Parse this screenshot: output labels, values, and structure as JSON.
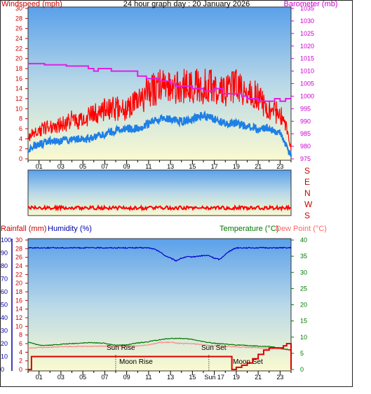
{
  "title": "24 hour graph day : 20 January 2026",
  "colors": {
    "wind": "#ff0000",
    "wind_avg": "#1e7fe6",
    "baro": "#e020e0",
    "temp": "#007700",
    "dew": "#ff8888",
    "humidity": "#0000cc",
    "rain": "#dd0000",
    "dirlabel": "#cc0000"
  },
  "chart_data": [
    {
      "type": "line",
      "name": "wind-baro-panel",
      "left_axis_label": "Windspeed (mph)",
      "right_axis_label": "Barometer (mb)",
      "left_ticks": [
        "0",
        "2",
        "4",
        "6",
        "8",
        "10",
        "12",
        "14",
        "16",
        "18",
        "20",
        "22",
        "24",
        "26",
        "28",
        "30"
      ],
      "right_ticks": [
        "975",
        "980",
        "985",
        "990",
        "995",
        "1000",
        "1005",
        "1010",
        "1015",
        "1020",
        "1025",
        "1030",
        "1035"
      ],
      "ylim_left": [
        0,
        30
      ],
      "ylim_right": [
        975,
        1035
      ],
      "x_ticks": [
        "01",
        "03",
        "05",
        "07",
        "09",
        "11",
        "13",
        "15",
        "17",
        "19",
        "21",
        "23"
      ],
      "xlim": [
        0,
        24
      ],
      "series": [
        {
          "key": "gust",
          "x": [
            0,
            1,
            2,
            3,
            4,
            5,
            6,
            7,
            8,
            9,
            10,
            11,
            12,
            13,
            14,
            15,
            16,
            17,
            18,
            19,
            20,
            21,
            22,
            23,
            23.5,
            24
          ],
          "values": [
            4,
            5,
            6,
            6,
            7,
            7,
            8,
            9,
            9,
            9,
            10,
            12,
            13,
            13,
            13,
            13,
            13,
            13,
            12,
            13,
            12,
            11,
            9,
            8,
            6,
            2
          ]
        },
        {
          "key": "average",
          "x": [
            0,
            1,
            2,
            3,
            4,
            5,
            6,
            7,
            8,
            9,
            10,
            11,
            12,
            13,
            14,
            15,
            16,
            17,
            18,
            19,
            20,
            21,
            22,
            23,
            23.5,
            24
          ],
          "values": [
            2,
            3,
            3.5,
            3.5,
            4,
            4,
            4,
            5,
            5.5,
            6,
            6,
            7,
            8,
            8,
            7.5,
            8,
            8.5,
            8,
            7,
            7,
            6.5,
            6,
            6,
            5,
            3,
            0.5
          ]
        },
        {
          "key": "pressure",
          "x": [
            0,
            1,
            1.5,
            3.5,
            5.5,
            6,
            6.4,
            7,
            7.6,
            9,
            10,
            10.8,
            11.5,
            12,
            12.5,
            13,
            13.5,
            14,
            15,
            16,
            16.5,
            17,
            17.8,
            18.5,
            19.5,
            20,
            21,
            22,
            22.5,
            23,
            23.5,
            24
          ],
          "values": [
            1013,
            1013,
            1012.5,
            1012,
            1011,
            1010,
            1011,
            1011,
            1010,
            1010,
            1008,
            1007,
            1007,
            1006,
            1006,
            1005,
            1004,
            1004,
            1003,
            1002,
            1002,
            1003,
            1001,
            1001,
            1000,
            999,
            998,
            998,
            999,
            998,
            999,
            999
          ]
        }
      ]
    },
    {
      "type": "line",
      "name": "wind-direction-panel",
      "right_labels": [
        "S",
        "E",
        "N",
        "W",
        "S"
      ],
      "xlim": [
        0,
        24
      ],
      "series": [
        {
          "key": "direction",
          "x": [
            0,
            2,
            4,
            6,
            8,
            10,
            12,
            14,
            16,
            18,
            20,
            22,
            24
          ],
          "values": [
            -1,
            -1,
            -1,
            -1,
            -1,
            -1,
            -1,
            -1,
            -1,
            -1,
            -1,
            -1,
            -1
          ]
        }
      ]
    },
    {
      "type": "line",
      "name": "temp-rain-humidity-panel",
      "rain_label": "Rainfall (mm)",
      "humidity_label": "Humidity (%)",
      "temp_label": "Temperature (°C)",
      "dew_label": "Dew Point (°C)",
      "humidity_ticks": [
        "0",
        "10",
        "20",
        "30",
        "40",
        "50",
        "60",
        "70",
        "80",
        "90",
        "100"
      ],
      "rain_ticks": [
        "0",
        "2",
        "4",
        "6",
        "8",
        "10",
        "12",
        "14",
        "16",
        "18",
        "20",
        "22",
        "24",
        "26",
        "28",
        "30"
      ],
      "temp_ticks": [
        "0",
        "5",
        "10",
        "15",
        "20",
        "25",
        "30",
        "35",
        "40"
      ],
      "ylim_humidity": [
        0,
        100
      ],
      "ylim_rain": [
        0,
        30
      ],
      "ylim_temp": [
        0,
        40
      ],
      "x_ticks": [
        "01",
        "03",
        "05",
        "07",
        "09",
        "11",
        "13",
        "15",
        "Sun 17",
        "19",
        "21",
        "23"
      ],
      "xlim": [
        0,
        24
      ],
      "annotations": [
        {
          "label": "Sun Rise",
          "x": 8,
          "y_temp": 6.5
        },
        {
          "label": "Sun Set",
          "x": 16.5,
          "y_temp": 6.5
        },
        {
          "label": "Moon Rise",
          "x": 8.5,
          "y_temp": 2
        },
        {
          "label": "Moon Set",
          "x": 19.5,
          "y_temp": 2
        }
      ],
      "event_lines": [
        8,
        16.5
      ],
      "series": [
        {
          "key": "humidity",
          "x": [
            0,
            1,
            2,
            3,
            4,
            5,
            6,
            7,
            8,
            9,
            10,
            11,
            11.5,
            12,
            12.5,
            13,
            13.5,
            14,
            14.5,
            15,
            16,
            16.5,
            17,
            17.5,
            18,
            18.5,
            19,
            20,
            21,
            22,
            23,
            24
          ],
          "values": [
            94,
            94,
            94,
            94,
            94,
            94,
            94,
            94,
            94,
            94,
            94,
            94,
            93,
            91,
            88,
            86,
            84,
            86,
            87,
            87,
            88,
            88,
            86,
            85,
            89,
            92,
            94,
            94,
            94,
            94,
            94,
            94
          ]
        },
        {
          "key": "temperature",
          "x": [
            0,
            1,
            2,
            3,
            4,
            5,
            6,
            7,
            8,
            9,
            10,
            11,
            12,
            13,
            14,
            15,
            16,
            17,
            18,
            19,
            20,
            21,
            22,
            23,
            24
          ],
          "values": [
            8.5,
            7.5,
            7.5,
            7.8,
            8,
            8.2,
            8.3,
            8.1,
            7.5,
            7.6,
            8.2,
            8.6,
            9.2,
            9.6,
            9.6,
            9.3,
            8.6,
            8.1,
            7.8,
            7.6,
            7.4,
            7.2,
            7.1,
            6.6,
            6
          ]
        },
        {
          "key": "dewpoint",
          "x": [
            0,
            1,
            2,
            3,
            4,
            5,
            6,
            7,
            8,
            9,
            10,
            11,
            12,
            13,
            14,
            15,
            16,
            17,
            18,
            19,
            20,
            21,
            22,
            23,
            24
          ],
          "values": [
            6.5,
            6.8,
            6.9,
            7,
            7.1,
            7.1,
            7.2,
            7.2,
            7.1,
            7.2,
            7.3,
            7.7,
            8.3,
            8.4,
            8,
            8,
            7.6,
            7.3,
            7.2,
            7,
            6.8,
            6.7,
            6.5,
            6.4,
            5.9
          ]
        },
        {
          "key": "rainfall",
          "x": [
            0,
            0.3,
            0.31,
            18.6,
            19,
            19.5,
            20,
            20.5,
            21,
            21.5,
            22,
            23,
            23.3,
            23.6,
            23.8,
            24
          ],
          "values": [
            0,
            0,
            3,
            0,
            0.5,
            1,
            1.5,
            2.5,
            3.5,
            4.5,
            5,
            5,
            5.5,
            6,
            6,
            0
          ]
        }
      ]
    }
  ]
}
